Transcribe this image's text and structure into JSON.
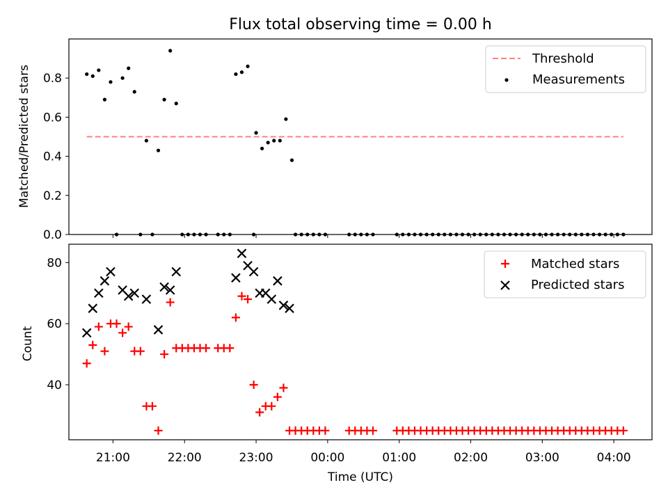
{
  "figure_title": "Flux total observing time = 0.00 h",
  "colors": {
    "threshold": "#ff7f7f",
    "measurements": "#000000",
    "matched": "#ff0000",
    "predicted": "#000000"
  },
  "chart_data": [
    {
      "type": "scatter",
      "title": "Flux total observing time = 0.00 h",
      "xlabel": "",
      "ylabel": "Matched/Predicted stars",
      "xlim": [
        "20:23",
        "04:32"
      ],
      "ylim": [
        0,
        1.0
      ],
      "xticks": [
        "21:00",
        "22:00",
        "23:00",
        "00:00",
        "01:00",
        "02:00",
        "03:00",
        "04:00"
      ],
      "yticks": [
        "0.0",
        "0.2",
        "0.4",
        "0.6",
        "0.8"
      ],
      "legend": {
        "position": "top-right",
        "entries": [
          "Threshold",
          "Measurements"
        ]
      },
      "threshold": {
        "name": "Threshold",
        "y": 0.5,
        "x_range": [
          "20:38",
          "04:08"
        ],
        "style": "dashed"
      },
      "series": [
        {
          "name": "Measurements",
          "points": [
            [
              "20:38",
              0.82
            ],
            [
              "20:43",
              0.81
            ],
            [
              "20:48",
              0.84
            ],
            [
              "20:53",
              0.69
            ],
            [
              "20:58",
              0.78
            ],
            [
              "21:03",
              0.0
            ],
            [
              "21:08",
              0.8
            ],
            [
              "21:13",
              0.85
            ],
            [
              "21:18",
              0.73
            ],
            [
              "21:23",
              0.0
            ],
            [
              "21:28",
              0.48
            ],
            [
              "21:33",
              0.0
            ],
            [
              "21:38",
              0.43
            ],
            [
              "21:43",
              0.69
            ],
            [
              "21:48",
              0.94
            ],
            [
              "21:53",
              0.67
            ],
            [
              "21:58",
              0.0
            ],
            [
              "22:03",
              0.0
            ],
            [
              "22:08",
              0.0
            ],
            [
              "22:13",
              0.0
            ],
            [
              "22:18",
              0.0
            ],
            [
              "22:28",
              0.0
            ],
            [
              "22:33",
              0.0
            ],
            [
              "22:38",
              0.0
            ],
            [
              "22:43",
              0.82
            ],
            [
              "22:48",
              0.83
            ],
            [
              "22:53",
              0.86
            ],
            [
              "22:58",
              0.0
            ],
            [
              "23:00",
              0.52
            ],
            [
              "23:05",
              0.44
            ],
            [
              "23:10",
              0.47
            ],
            [
              "23:15",
              0.48
            ],
            [
              "23:20",
              0.48
            ],
            [
              "23:25",
              0.59
            ],
            [
              "23:30",
              0.38
            ],
            [
              "23:33",
              0.0
            ],
            [
              "23:38",
              0.0
            ],
            [
              "23:43",
              0.0
            ],
            [
              "23:48",
              0.0
            ],
            [
              "23:53",
              0.0
            ],
            [
              "23:58",
              0.0
            ],
            [
              "00:18",
              0.0
            ],
            [
              "00:23",
              0.0
            ],
            [
              "00:28",
              0.0
            ],
            [
              "00:33",
              0.0
            ],
            [
              "00:38",
              0.0
            ],
            [
              "00:58",
              0.0
            ],
            [
              "01:03",
              0.0
            ],
            [
              "01:08",
              0.0
            ],
            [
              "01:13",
              0.0
            ],
            [
              "01:18",
              0.0
            ],
            [
              "01:23",
              0.0
            ],
            [
              "01:28",
              0.0
            ],
            [
              "01:33",
              0.0
            ],
            [
              "01:38",
              0.0
            ],
            [
              "01:43",
              0.0
            ],
            [
              "01:48",
              0.0
            ],
            [
              "01:53",
              0.0
            ],
            [
              "01:58",
              0.0
            ],
            [
              "02:03",
              0.0
            ],
            [
              "02:08",
              0.0
            ],
            [
              "02:13",
              0.0
            ],
            [
              "02:18",
              0.0
            ],
            [
              "02:23",
              0.0
            ],
            [
              "02:28",
              0.0
            ],
            [
              "02:33",
              0.0
            ],
            [
              "02:38",
              0.0
            ],
            [
              "02:43",
              0.0
            ],
            [
              "02:48",
              0.0
            ],
            [
              "02:53",
              0.0
            ],
            [
              "02:58",
              0.0
            ],
            [
              "03:03",
              0.0
            ],
            [
              "03:08",
              0.0
            ],
            [
              "03:13",
              0.0
            ],
            [
              "03:18",
              0.0
            ],
            [
              "03:23",
              0.0
            ],
            [
              "03:28",
              0.0
            ],
            [
              "03:33",
              0.0
            ],
            [
              "03:38",
              0.0
            ],
            [
              "03:43",
              0.0
            ],
            [
              "03:48",
              0.0
            ],
            [
              "03:53",
              0.0
            ],
            [
              "03:58",
              0.0
            ],
            [
              "04:03",
              0.0
            ],
            [
              "04:08",
              0.0
            ]
          ]
        }
      ]
    },
    {
      "type": "scatter",
      "title": "",
      "xlabel": "Time (UTC)",
      "ylabel": "Count",
      "xlim": [
        "20:23",
        "04:32"
      ],
      "ylim": [
        22,
        86
      ],
      "xticks": [
        "21:00",
        "22:00",
        "23:00",
        "00:00",
        "01:00",
        "02:00",
        "03:00",
        "04:00"
      ],
      "yticks": [
        "40",
        "60",
        "80"
      ],
      "legend": {
        "position": "top-right",
        "entries": [
          "Matched stars",
          "Predicted stars"
        ]
      },
      "series": [
        {
          "name": "Matched stars",
          "points": [
            [
              "20:38",
              47
            ],
            [
              "20:43",
              53
            ],
            [
              "20:48",
              59
            ],
            [
              "20:53",
              51
            ],
            [
              "20:58",
              60
            ],
            [
              "21:03",
              60
            ],
            [
              "21:08",
              57
            ],
            [
              "21:13",
              59
            ],
            [
              "21:18",
              51
            ],
            [
              "21:23",
              51
            ],
            [
              "21:28",
              33
            ],
            [
              "21:33",
              33
            ],
            [
              "21:38",
              25
            ],
            [
              "21:43",
              50
            ],
            [
              "21:48",
              67
            ],
            [
              "21:53",
              52
            ],
            [
              "21:58",
              52
            ],
            [
              "22:03",
              52
            ],
            [
              "22:08",
              52
            ],
            [
              "22:13",
              52
            ],
            [
              "22:18",
              52
            ],
            [
              "22:28",
              52
            ],
            [
              "22:33",
              52
            ],
            [
              "22:38",
              52
            ],
            [
              "22:43",
              62
            ],
            [
              "22:48",
              69
            ],
            [
              "22:53",
              68
            ],
            [
              "22:58",
              40
            ],
            [
              "23:03",
              31
            ],
            [
              "23:08",
              33
            ],
            [
              "23:13",
              33
            ],
            [
              "23:18",
              36
            ],
            [
              "23:23",
              39
            ],
            [
              "23:28",
              25
            ],
            [
              "23:33",
              25
            ],
            [
              "23:38",
              25
            ],
            [
              "23:43",
              25
            ],
            [
              "23:48",
              25
            ],
            [
              "23:53",
              25
            ],
            [
              "23:58",
              25
            ],
            [
              "00:18",
              25
            ],
            [
              "00:23",
              25
            ],
            [
              "00:28",
              25
            ],
            [
              "00:33",
              25
            ],
            [
              "00:38",
              25
            ],
            [
              "00:58",
              25
            ],
            [
              "01:03",
              25
            ],
            [
              "01:08",
              25
            ],
            [
              "01:13",
              25
            ],
            [
              "01:18",
              25
            ],
            [
              "01:23",
              25
            ],
            [
              "01:28",
              25
            ],
            [
              "01:33",
              25
            ],
            [
              "01:38",
              25
            ],
            [
              "01:43",
              25
            ],
            [
              "01:48",
              25
            ],
            [
              "01:53",
              25
            ],
            [
              "01:58",
              25
            ],
            [
              "02:03",
              25
            ],
            [
              "02:08",
              25
            ],
            [
              "02:13",
              25
            ],
            [
              "02:18",
              25
            ],
            [
              "02:23",
              25
            ],
            [
              "02:28",
              25
            ],
            [
              "02:33",
              25
            ],
            [
              "02:38",
              25
            ],
            [
              "02:43",
              25
            ],
            [
              "02:48",
              25
            ],
            [
              "02:53",
              25
            ],
            [
              "02:58",
              25
            ],
            [
              "03:03",
              25
            ],
            [
              "03:08",
              25
            ],
            [
              "03:13",
              25
            ],
            [
              "03:18",
              25
            ],
            [
              "03:23",
              25
            ],
            [
              "03:28",
              25
            ],
            [
              "03:33",
              25
            ],
            [
              "03:38",
              25
            ],
            [
              "03:43",
              25
            ],
            [
              "03:48",
              25
            ],
            [
              "03:53",
              25
            ],
            [
              "03:58",
              25
            ],
            [
              "04:03",
              25
            ],
            [
              "04:08",
              25
            ]
          ]
        },
        {
          "name": "Predicted stars",
          "points": [
            [
              "20:38",
              57
            ],
            [
              "20:43",
              65
            ],
            [
              "20:48",
              70
            ],
            [
              "20:53",
              74
            ],
            [
              "20:58",
              77
            ],
            [
              "21:08",
              71
            ],
            [
              "21:13",
              69
            ],
            [
              "21:18",
              70
            ],
            [
              "21:28",
              68
            ],
            [
              "21:38",
              58
            ],
            [
              "21:43",
              72
            ],
            [
              "21:48",
              71
            ],
            [
              "21:53",
              77
            ],
            [
              "22:43",
              75
            ],
            [
              "22:48",
              83
            ],
            [
              "22:53",
              79
            ],
            [
              "22:58",
              77
            ],
            [
              "23:03",
              70
            ],
            [
              "23:08",
              70
            ],
            [
              "23:13",
              68
            ],
            [
              "23:18",
              74
            ],
            [
              "23:23",
              66
            ],
            [
              "23:28",
              65
            ]
          ]
        }
      ]
    }
  ]
}
